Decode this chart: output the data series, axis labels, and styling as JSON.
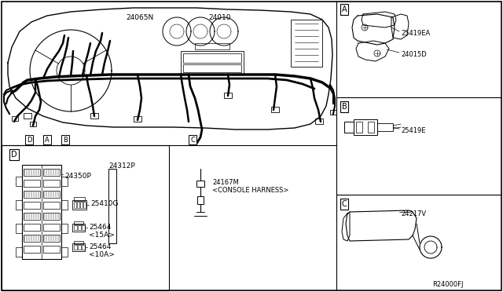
{
  "background_color": "#ffffff",
  "fig_width": 6.4,
  "fig_height": 3.72,
  "dpi": 100,
  "labels": {
    "main_harness": "24010",
    "harness_2": "24065N",
    "part_A1": "25419EA",
    "part_A2": "24015D",
    "part_B": "25419E",
    "part_C": "24217V",
    "part_D1": "24350P",
    "part_D2": "24312P",
    "part_D3": "25410G",
    "part_D4": "25464\n<15A>",
    "part_D5": "25464\n<10A>",
    "console": "24167M\n<CONSOLE HARNESS>",
    "ref_code": "R24000FJ",
    "section_A": "A",
    "section_B": "B",
    "section_C": "C",
    "section_D": "D",
    "label_D": "D",
    "label_A": "A",
    "label_B": "B"
  },
  "line_color": "#000000",
  "text_color": "#000000"
}
